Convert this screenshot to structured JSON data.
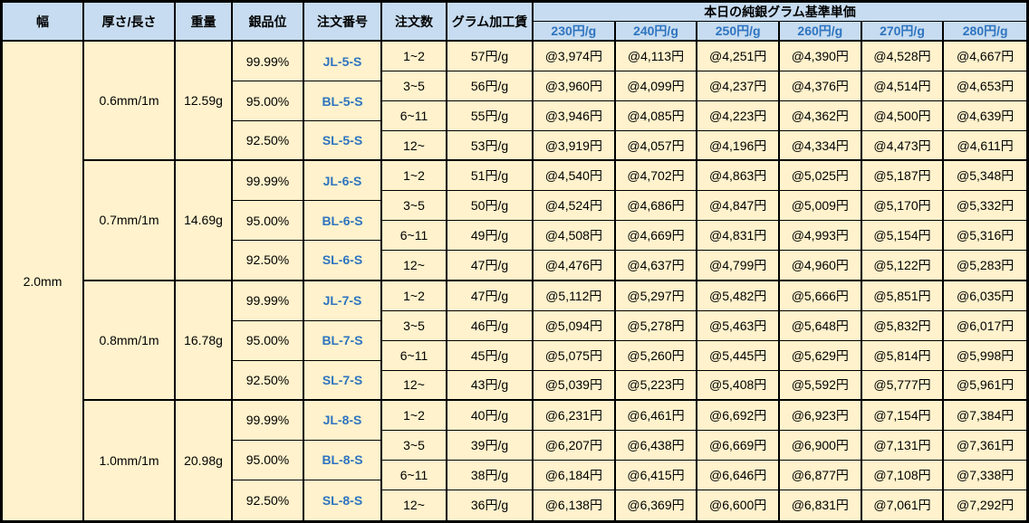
{
  "header": {
    "width": "幅",
    "thickness_length": "厚さ/長さ",
    "weight": "重量",
    "silver_purity": "銀品位",
    "order_number": "注文番号",
    "order_quantity": "注文数",
    "gram_processing_fee": "グラム加工賃",
    "price_group_title": "本日の純銀グラム基準単価",
    "price_columns": [
      "230円/g",
      "240円/g",
      "250円/g",
      "260円/g",
      "270円/g",
      "280円/g"
    ]
  },
  "width_value": "2.0mm",
  "colors": {
    "header_bg": "#C7DCF0",
    "body_bg": "#FFF2CC",
    "accent_blue": "#2E74C0",
    "border": "#000000"
  },
  "groups": [
    {
      "thickness": "0.6mm/1m",
      "weight": "12.59g",
      "purities": [
        {
          "purity": "99.99%",
          "order_no": "JL-5-S"
        },
        {
          "purity": "95.00%",
          "order_no": "BL-5-S"
        },
        {
          "purity": "92.50%",
          "order_no": "SL-5-S"
        }
      ],
      "rows": [
        {
          "qty": "1~2",
          "fee": "57円/g",
          "prices": [
            "@3,974円",
            "@4,113円",
            "@4,251円",
            "@4,390円",
            "@4,528円",
            "@4,667円"
          ]
        },
        {
          "qty": "3~5",
          "fee": "56円/g",
          "prices": [
            "@3,960円",
            "@4,099円",
            "@4,237円",
            "@4,376円",
            "@4,514円",
            "@4,653円"
          ]
        },
        {
          "qty": "6~11",
          "fee": "55円/g",
          "prices": [
            "@3,946円",
            "@4,085円",
            "@4,223円",
            "@4,362円",
            "@4,500円",
            "@4,639円"
          ]
        },
        {
          "qty": "12~",
          "fee": "53円/g",
          "prices": [
            "@3,919円",
            "@4,057円",
            "@4,196円",
            "@4,334円",
            "@4,473円",
            "@4,611円"
          ]
        }
      ]
    },
    {
      "thickness": "0.7mm/1m",
      "weight": "14.69g",
      "purities": [
        {
          "purity": "99.99%",
          "order_no": "JL-6-S"
        },
        {
          "purity": "95.00%",
          "order_no": "BL-6-S"
        },
        {
          "purity": "92.50%",
          "order_no": "SL-6-S"
        }
      ],
      "rows": [
        {
          "qty": "1~2",
          "fee": "51円/g",
          "prices": [
            "@4,540円",
            "@4,702円",
            "@4,863円",
            "@5,025円",
            "@5,187円",
            "@5,348円"
          ]
        },
        {
          "qty": "3~5",
          "fee": "50円/g",
          "prices": [
            "@4,524円",
            "@4,686円",
            "@4,847円",
            "@5,009円",
            "@5,170円",
            "@5,332円"
          ]
        },
        {
          "qty": "6~11",
          "fee": "49円/g",
          "prices": [
            "@4,508円",
            "@4,669円",
            "@4,831円",
            "@4,993円",
            "@5,154円",
            "@5,316円"
          ]
        },
        {
          "qty": "12~",
          "fee": "47円/g",
          "prices": [
            "@4,476円",
            "@4,637円",
            "@4,799円",
            "@4,960円",
            "@5,122円",
            "@5,283円"
          ]
        }
      ]
    },
    {
      "thickness": "0.8mm/1m",
      "weight": "16.78g",
      "purities": [
        {
          "purity": "99.99%",
          "order_no": "JL-7-S"
        },
        {
          "purity": "95.00%",
          "order_no": "BL-7-S"
        },
        {
          "purity": "92.50%",
          "order_no": "SL-7-S"
        }
      ],
      "rows": [
        {
          "qty": "1~2",
          "fee": "47円/g",
          "prices": [
            "@5,112円",
            "@5,297円",
            "@5,482円",
            "@5,666円",
            "@5,851円",
            "@6,035円"
          ]
        },
        {
          "qty": "3~5",
          "fee": "46円/g",
          "prices": [
            "@5,094円",
            "@5,278円",
            "@5,463円",
            "@5,648円",
            "@5,832円",
            "@6,017円"
          ]
        },
        {
          "qty": "6~11",
          "fee": "45円/g",
          "prices": [
            "@5,075円",
            "@5,260円",
            "@5,445円",
            "@5,629円",
            "@5,814円",
            "@5,998円"
          ]
        },
        {
          "qty": "12~",
          "fee": "43円/g",
          "prices": [
            "@5,039円",
            "@5,223円",
            "@5,408円",
            "@5,592円",
            "@5,777円",
            "@5,961円"
          ]
        }
      ]
    },
    {
      "thickness": "1.0mm/1m",
      "weight": "20.98g",
      "purities": [
        {
          "purity": "99.99%",
          "order_no": "JL-8-S"
        },
        {
          "purity": "95.00%",
          "order_no": "BL-8-S"
        },
        {
          "purity": "92.50%",
          "order_no": "SL-8-S"
        }
      ],
      "rows": [
        {
          "qty": "1~2",
          "fee": "40円/g",
          "prices": [
            "@6,231円",
            "@6,461円",
            "@6,692円",
            "@6,923円",
            "@7,154円",
            "@7,384円"
          ]
        },
        {
          "qty": "3~5",
          "fee": "39円/g",
          "prices": [
            "@6,207円",
            "@6,438円",
            "@6,669円",
            "@6,900円",
            "@7,131円",
            "@7,361円"
          ]
        },
        {
          "qty": "6~11",
          "fee": "38円/g",
          "prices": [
            "@6,184円",
            "@6,415円",
            "@6,646円",
            "@6,877円",
            "@7,108円",
            "@7,338円"
          ]
        },
        {
          "qty": "12~",
          "fee": "36円/g",
          "prices": [
            "@6,138円",
            "@6,369円",
            "@6,600円",
            "@6,831円",
            "@7,061円",
            "@7,292円"
          ]
        }
      ]
    }
  ]
}
